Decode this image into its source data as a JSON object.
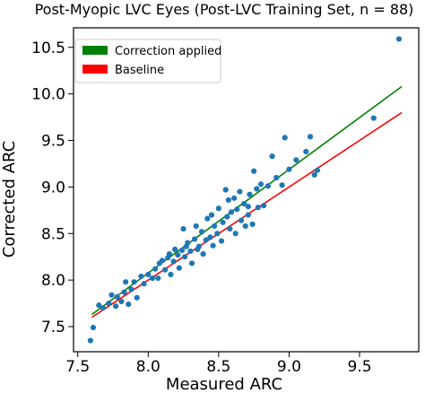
{
  "chart_data": {
    "type": "scatter",
    "title": "Post-Myopic LVC Eyes (Post-LVC Training Set, n = 88)",
    "xlabel": "Measured ARC",
    "ylabel": "Corrected ARC",
    "xlim": [
      7.47,
      9.92
    ],
    "ylim": [
      7.23,
      10.71
    ],
    "xticks": [
      "7.5",
      "8.0",
      "8.5",
      "9.0",
      "9.5"
    ],
    "yticks": [
      "7.5",
      "8.0",
      "8.5",
      "9.0",
      "9.5",
      "10.0",
      "10.5"
    ],
    "grid": false,
    "legend_position": "top-left",
    "lines": [
      {
        "name": "Correction applied",
        "color": "#008000",
        "x": [
          7.6,
          9.8
        ],
        "y": [
          7.63,
          10.08
        ]
      },
      {
        "name": "Baseline",
        "color": "#ff0000",
        "x": [
          7.6,
          9.8
        ],
        "y": [
          7.6,
          9.8
        ]
      }
    ],
    "points_color": "#1f77b4",
    "points": [
      [
        7.59,
        7.35
      ],
      [
        7.61,
        7.49
      ],
      [
        7.65,
        7.73
      ],
      [
        7.68,
        7.7
      ],
      [
        7.72,
        7.75
      ],
      [
        7.74,
        7.84
      ],
      [
        7.77,
        7.72
      ],
      [
        7.78,
        7.82
      ],
      [
        7.81,
        7.77
      ],
      [
        7.83,
        7.87
      ],
      [
        7.84,
        7.98
      ],
      [
        7.86,
        7.74
      ],
      [
        7.88,
        7.9
      ],
      [
        7.9,
        7.98
      ],
      [
        7.92,
        7.81
      ],
      [
        7.95,
        8.04
      ],
      [
        7.97,
        7.96
      ],
      [
        8.0,
        8.06
      ],
      [
        8.03,
        8.02
      ],
      [
        8.05,
        8.12
      ],
      [
        8.07,
        8.02
      ],
      [
        8.08,
        8.18
      ],
      [
        8.1,
        8.21
      ],
      [
        8.12,
        8.11
      ],
      [
        8.14,
        8.24
      ],
      [
        8.16,
        8.06
      ],
      [
        8.18,
        8.2
      ],
      [
        8.19,
        8.33
      ],
      [
        8.21,
        8.27
      ],
      [
        8.22,
        8.13
      ],
      [
        8.24,
        8.32
      ],
      [
        8.25,
        8.55
      ],
      [
        8.26,
        8.25
      ],
      [
        8.28,
        8.4
      ],
      [
        8.3,
        8.31
      ],
      [
        8.31,
        8.18
      ],
      [
        8.33,
        8.44
      ],
      [
        8.34,
        8.58
      ],
      [
        8.36,
        8.36
      ],
      [
        8.38,
        8.52
      ],
      [
        8.39,
        8.28
      ],
      [
        8.41,
        8.43
      ],
      [
        8.42,
        8.66
      ],
      [
        8.44,
        8.46
      ],
      [
        8.46,
        8.37
      ],
      [
        8.47,
        8.58
      ],
      [
        8.49,
        8.5
      ],
      [
        8.5,
        8.77
      ],
      [
        8.52,
        8.42
      ],
      [
        8.53,
        8.62
      ],
      [
        8.55,
        8.97
      ],
      [
        8.56,
        8.68
      ],
      [
        8.58,
        8.55
      ],
      [
        8.59,
        8.73
      ],
      [
        8.61,
        8.88
      ],
      [
        8.62,
        8.5
      ],
      [
        8.63,
        8.76
      ],
      [
        8.65,
        8.95
      ],
      [
        8.66,
        8.64
      ],
      [
        8.68,
        8.82
      ],
      [
        8.69,
        8.58
      ],
      [
        8.71,
        8.7
      ],
      [
        8.72,
        8.92
      ],
      [
        8.74,
        8.6
      ],
      [
        8.75,
        9.17
      ],
      [
        8.77,
        8.98
      ],
      [
        8.78,
        8.78
      ],
      [
        8.8,
        9.03
      ],
      [
        8.82,
        8.8
      ],
      [
        8.85,
        9.01
      ],
      [
        8.88,
        9.33
      ],
      [
        8.91,
        9.1
      ],
      [
        8.95,
        9.02
      ],
      [
        8.97,
        9.53
      ],
      [
        9.0,
        9.19
      ],
      [
        9.05,
        9.29
      ],
      [
        9.15,
        9.54
      ],
      [
        9.18,
        9.13
      ],
      [
        9.2,
        9.18
      ],
      [
        9.6,
        9.74
      ],
      [
        9.78,
        10.59
      ],
      [
        8.45,
        8.7
      ],
      [
        8.57,
        8.86
      ],
      [
        8.35,
        8.33
      ],
      [
        8.15,
        8.28
      ],
      [
        8.27,
        8.36
      ],
      [
        8.71,
        8.79
      ],
      [
        9.12,
        9.38
      ]
    ]
  }
}
